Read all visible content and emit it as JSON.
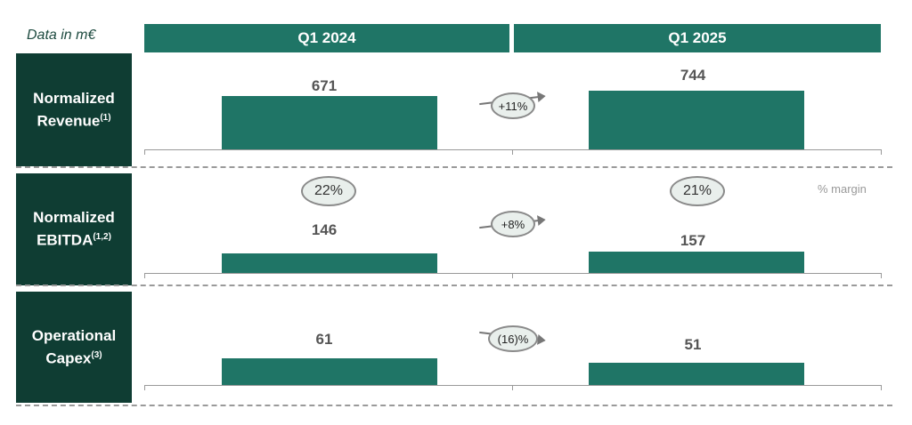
{
  "units_label": "Data in m€",
  "chart_data": {
    "type": "bar",
    "categories": [
      "Q1 2024",
      "Q1 2025"
    ],
    "series": [
      {
        "name": "Normalized Revenue",
        "label": "Normalized Revenue",
        "footnote": "(1)",
        "values": [
          671,
          744
        ],
        "change": "+11%"
      },
      {
        "name": "Normalized EBITDA",
        "label": "Normalized EBITDA",
        "footnote": "(1,2)",
        "values": [
          146,
          157
        ],
        "change": "+8%",
        "margins": [
          "22%",
          "21%"
        ],
        "margin_label": "% margin"
      },
      {
        "name": "Operational Capex",
        "label": "Operational Capex",
        "footnote": "(3)",
        "values": [
          61,
          51
        ],
        "change": "(16)%"
      }
    ],
    "colors": {
      "bar": "#1f7566",
      "header": "#1f7566",
      "row_label": "#0f3d33"
    },
    "grid": false
  }
}
